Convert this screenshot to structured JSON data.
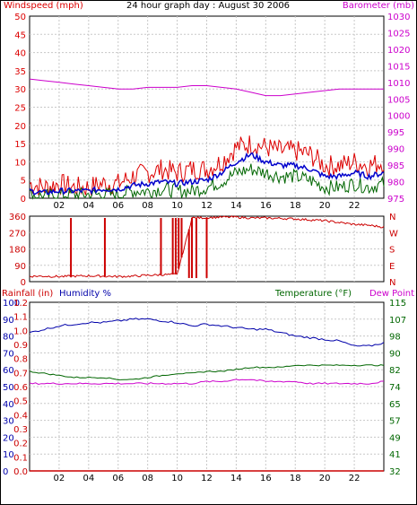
{
  "title": "24 hour graph day : August 30 2006",
  "colors": {
    "wind_speed": "#dd0000",
    "wind_avg": "#0000cc",
    "wind_low": "#006600",
    "barometer": "#cc00cc",
    "direction": "#cc0000",
    "humidity": "#0000aa",
    "temperature": "#006600",
    "dewpoint": "#cc00cc",
    "rain": "#cc0000",
    "grid": "#c8c8c8"
  },
  "chart_data": [
    {
      "type": "line",
      "name": "wind-barometer",
      "ylabel_left": "Windspeed (mph)",
      "ylabel_right": "Barometer (mb)",
      "x_ticks": [
        "02",
        "04",
        "06",
        "08",
        "10",
        "12",
        "14",
        "16",
        "18",
        "20",
        "22"
      ],
      "x_range": [
        0,
        24
      ],
      "y_left_ticks": [
        "50",
        "45",
        "40",
        "35",
        "30",
        "25",
        "20",
        "15",
        "10",
        "5",
        "0"
      ],
      "y_left_range": [
        0,
        50
      ],
      "y_right_ticks": [
        "1030",
        "1025",
        "1020",
        "1015",
        "1010",
        "1005",
        "1000",
        "995",
        "990",
        "985",
        "980",
        "975"
      ],
      "y_right_range": [
        975,
        1030
      ],
      "x": [
        0,
        1,
        2,
        3,
        4,
        5,
        6,
        7,
        8,
        9,
        10,
        11,
        12,
        13,
        14,
        15,
        16,
        17,
        18,
        19,
        20,
        21,
        22,
        23,
        24
      ],
      "series": [
        {
          "key": "gust",
          "values": [
            4,
            3,
            4,
            3,
            3,
            4,
            4,
            6,
            7,
            8,
            7,
            8,
            8,
            10,
            14,
            15,
            14,
            13,
            13,
            12,
            9,
            9,
            10,
            9,
            10
          ]
        },
        {
          "key": "average",
          "values": [
            2,
            1.5,
            2,
            2,
            2,
            2.5,
            2.5,
            3.5,
            4,
            4.5,
            4,
            4.5,
            5,
            7,
            10,
            12,
            10,
            9,
            9,
            8,
            6,
            6,
            7,
            6,
            7
          ]
        },
        {
          "key": "low",
          "values": [
            1,
            0.5,
            1,
            1,
            1,
            1,
            1,
            2,
            2,
            2.5,
            2,
            2,
            3,
            4.5,
            7,
            8,
            7,
            6,
            6,
            5,
            3,
            3,
            4,
            3,
            4
          ]
        },
        {
          "key": "barometer",
          "values": [
            1011,
            1010.5,
            1010,
            1009.5,
            1009,
            1008.5,
            1008,
            1008,
            1008.5,
            1008.5,
            1008.5,
            1009,
            1009,
            1008.5,
            1008,
            1007,
            1006,
            1006,
            1006.5,
            1007,
            1007.5,
            1008,
            1008,
            1008,
            1008
          ]
        }
      ]
    },
    {
      "type": "line",
      "name": "wind-direction",
      "y_left_ticks": [
        "360",
        "270",
        "180",
        "90",
        "0"
      ],
      "y_left_range": [
        0,
        360
      ],
      "y_right_ticks": [
        "N",
        "W",
        "S",
        "E",
        "N"
      ],
      "x": [
        0,
        1,
        2,
        3,
        4,
        5,
        6,
        7,
        8,
        9,
        10,
        11,
        12,
        13,
        14,
        15,
        16,
        17,
        18,
        19,
        20,
        21,
        22,
        23,
        24
      ],
      "series": [
        {
          "key": "direction",
          "values": [
            30,
            30,
            28,
            30,
            32,
            30,
            28,
            30,
            35,
            38,
            40,
            350,
            352,
            355,
            355,
            350,
            350,
            348,
            345,
            340,
            335,
            325,
            315,
            310,
            300
          ]
        }
      ],
      "spikes_x": [
        2.8,
        5.1,
        8.9,
        9.7,
        9.9,
        10.1,
        10.3,
        10.8,
        11.0,
        11.3,
        12.0
      ]
    },
    {
      "type": "line",
      "name": "rain-humidity-temperature",
      "ylabel_left_rain": "Rainfall (in)",
      "ylabel_left_humidity": "Humidity %",
      "ylabel_right_temp": "Temperature (°F)",
      "ylabel_right_dew": "Dew Point",
      "y_rain_ticks": [
        "1.2",
        "1.1",
        "1.0",
        "0.9",
        "0.8",
        "0.7",
        "0.6",
        "0.5",
        "0.4",
        "0.3",
        "0.2",
        "0.1",
        "0.0"
      ],
      "y_humidity_ticks": [
        "100",
        "90",
        "80",
        "70",
        "60",
        "50",
        "40",
        "30",
        "20",
        "10",
        "0"
      ],
      "y_temp_ticks": [
        "115",
        "107",
        "98",
        "90",
        "82",
        "74",
        "65",
        "57",
        "49",
        "41",
        "32"
      ],
      "y_temp_range": [
        32,
        115
      ],
      "y_humidity_range": [
        0,
        100
      ],
      "x": [
        0,
        1,
        2,
        3,
        4,
        5,
        6,
        7,
        8,
        9,
        10,
        11,
        12,
        13,
        14,
        15,
        16,
        17,
        18,
        19,
        20,
        21,
        22,
        23,
        24
      ],
      "series": [
        {
          "key": "humidity",
          "values": [
            82,
            84,
            86,
            87,
            88,
            88,
            89,
            90,
            90,
            89,
            88,
            86,
            87,
            86,
            85,
            84,
            84,
            82,
            80,
            79,
            78,
            77,
            74,
            74,
            76
          ]
        },
        {
          "key": "temperature",
          "values": [
            81,
            80,
            79,
            78,
            78,
            78,
            77,
            77,
            78,
            79,
            80,
            80,
            81,
            81,
            82,
            83,
            83,
            83,
            84,
            84,
            84,
            84,
            84,
            84,
            84
          ]
        },
        {
          "key": "dewpoint",
          "values": [
            75,
            75,
            75,
            75,
            75,
            75,
            75,
            75,
            75,
            75,
            75,
            75,
            76,
            76,
            77,
            77,
            76,
            76,
            76,
            75,
            75,
            75,
            75,
            75,
            76
          ]
        },
        {
          "key": "rain",
          "values": [
            0,
            0,
            0,
            0,
            0,
            0,
            0,
            0,
            0,
            0,
            0,
            0,
            0,
            0,
            0,
            0,
            0,
            0,
            0,
            0,
            0,
            0,
            0,
            0,
            0
          ]
        }
      ]
    }
  ]
}
